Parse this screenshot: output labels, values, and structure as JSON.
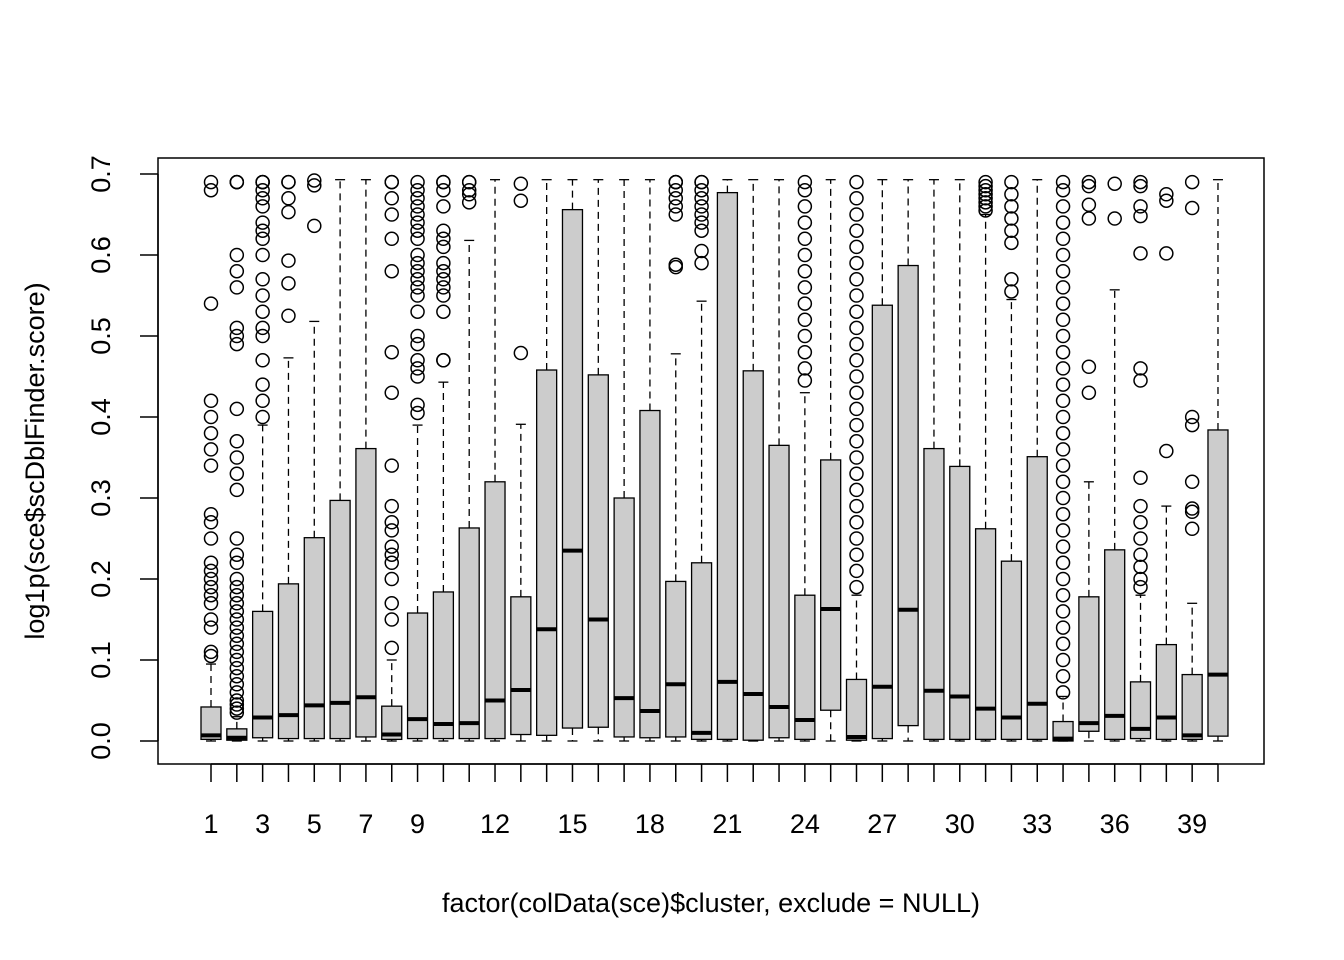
{
  "chart_data": {
    "type": "boxplot",
    "xlabel": "factor(colData(sce)$cluster, exclude = NULL)",
    "ylabel": "log1p(sce$scDblFinder.score)",
    "ylim": [
      0.0,
      0.7
    ],
    "y_ticks": [
      "0.0",
      "0.1",
      "0.2",
      "0.3",
      "0.4",
      "0.5",
      "0.6",
      "0.7"
    ],
    "categories": [
      "1",
      "2",
      "3",
      "4",
      "5",
      "6",
      "7",
      "8",
      "9",
      "10",
      "11",
      "12",
      "13",
      "14",
      "15",
      "16",
      "17",
      "18",
      "19",
      "20",
      "21",
      "22",
      "23",
      "24",
      "25",
      "26",
      "27",
      "28",
      "29",
      "30",
      "31",
      "32",
      "33",
      "34",
      "35",
      "36",
      "37",
      "38",
      "39",
      "40"
    ],
    "x_tick_labels": [
      "1",
      "3",
      "5",
      "7",
      "9",
      "12",
      "15",
      "18",
      "21",
      "24",
      "27",
      "30",
      "33",
      "36",
      "39"
    ],
    "grid": false,
    "legend": "none",
    "series": [
      {
        "q1": 0.002,
        "median": 0.007,
        "q3": 0.042,
        "lo": 0.0,
        "hi": 0.095,
        "outliers": [
          0.105,
          0.11,
          0.14,
          0.15,
          0.17,
          0.18,
          0.19,
          0.2,
          0.21,
          0.22,
          0.25,
          0.27,
          0.28,
          0.34,
          0.36,
          0.38,
          0.4,
          0.42,
          0.54,
          0.68,
          0.69
        ]
      },
      {
        "q1": 0.001,
        "median": 0.004,
        "q3": 0.015,
        "lo": 0.0,
        "hi": 0.03,
        "outliers": [
          0.035,
          0.04,
          0.045,
          0.05,
          0.06,
          0.07,
          0.08,
          0.09,
          0.1,
          0.11,
          0.12,
          0.13,
          0.14,
          0.15,
          0.16,
          0.17,
          0.18,
          0.19,
          0.2,
          0.22,
          0.23,
          0.25,
          0.31,
          0.33,
          0.35,
          0.37,
          0.41,
          0.49,
          0.5,
          0.51,
          0.56,
          0.58,
          0.6,
          0.69,
          0.69,
          0.69
        ]
      },
      {
        "q1": 0.004,
        "median": 0.029,
        "q3": 0.16,
        "lo": 0.0,
        "hi": 0.39,
        "outliers": [
          0.4,
          0.42,
          0.44,
          0.47,
          0.5,
          0.51,
          0.53,
          0.55,
          0.57,
          0.6,
          0.62,
          0.63,
          0.64,
          0.66,
          0.67,
          0.68,
          0.69,
          0.69,
          0.69
        ]
      },
      {
        "q1": 0.003,
        "median": 0.032,
        "q3": 0.194,
        "lo": 0.0,
        "hi": 0.473,
        "outliers": [
          0.525,
          0.565,
          0.593,
          0.653,
          0.67,
          0.69,
          0.69
        ]
      },
      {
        "q1": 0.003,
        "median": 0.044,
        "q3": 0.251,
        "lo": 0.0,
        "hi": 0.518,
        "outliers": [
          0.636,
          0.686,
          0.692
        ]
      },
      {
        "q1": 0.003,
        "median": 0.047,
        "q3": 0.297,
        "lo": 0.0,
        "hi": 0.693,
        "outliers": []
      },
      {
        "q1": 0.005,
        "median": 0.054,
        "q3": 0.361,
        "lo": 0.0,
        "hi": 0.693,
        "outliers": []
      },
      {
        "q1": 0.002,
        "median": 0.008,
        "q3": 0.043,
        "lo": 0.0,
        "hi": 0.1,
        "outliers": [
          0.115,
          0.15,
          0.17,
          0.2,
          0.22,
          0.23,
          0.24,
          0.26,
          0.27,
          0.29,
          0.34,
          0.43,
          0.48,
          0.58,
          0.62,
          0.65,
          0.67,
          0.69,
          0.69
        ]
      },
      {
        "q1": 0.003,
        "median": 0.027,
        "q3": 0.158,
        "lo": 0.0,
        "hi": 0.39,
        "outliers": [
          0.405,
          0.415,
          0.45,
          0.46,
          0.47,
          0.49,
          0.5,
          0.53,
          0.55,
          0.56,
          0.57,
          0.58,
          0.59,
          0.6,
          0.62,
          0.63,
          0.64,
          0.65,
          0.66,
          0.67,
          0.68,
          0.69
        ]
      },
      {
        "q1": 0.003,
        "median": 0.021,
        "q3": 0.184,
        "lo": 0.0,
        "hi": 0.443,
        "outliers": [
          0.47,
          0.47,
          0.53,
          0.55,
          0.56,
          0.57,
          0.58,
          0.59,
          0.61,
          0.62,
          0.63,
          0.66,
          0.68,
          0.69,
          0.69
        ]
      },
      {
        "q1": 0.003,
        "median": 0.022,
        "q3": 0.263,
        "lo": 0.0,
        "hi": 0.618,
        "outliers": [
          0.665,
          0.675,
          0.68,
          0.69,
          0.69
        ]
      },
      {
        "q1": 0.003,
        "median": 0.05,
        "q3": 0.32,
        "lo": 0.0,
        "hi": 0.693,
        "outliers": []
      },
      {
        "q1": 0.008,
        "median": 0.063,
        "q3": 0.178,
        "lo": 0.0,
        "hi": 0.391,
        "outliers": [
          0.479,
          0.667,
          0.688
        ]
      },
      {
        "q1": 0.007,
        "median": 0.138,
        "q3": 0.458,
        "lo": 0.0,
        "hi": 0.693,
        "outliers": []
      },
      {
        "q1": 0.016,
        "median": 0.235,
        "q3": 0.656,
        "lo": 0.0,
        "hi": 0.693,
        "outliers": []
      },
      {
        "q1": 0.017,
        "median": 0.15,
        "q3": 0.452,
        "lo": 0.0,
        "hi": 0.693,
        "outliers": []
      },
      {
        "q1": 0.005,
        "median": 0.053,
        "q3": 0.3,
        "lo": 0.0,
        "hi": 0.693,
        "outliers": []
      },
      {
        "q1": 0.004,
        "median": 0.037,
        "q3": 0.408,
        "lo": 0.0,
        "hi": 0.693,
        "outliers": []
      },
      {
        "q1": 0.005,
        "median": 0.07,
        "q3": 0.197,
        "lo": 0.0,
        "hi": 0.478,
        "outliers": [
          0.585,
          0.588,
          0.65,
          0.66,
          0.67,
          0.68,
          0.69,
          0.69,
          0.69
        ]
      },
      {
        "q1": 0.002,
        "median": 0.01,
        "q3": 0.22,
        "lo": 0.0,
        "hi": 0.543,
        "outliers": [
          0.59,
          0.605,
          0.63,
          0.64,
          0.65,
          0.66,
          0.67,
          0.68,
          0.69,
          0.69
        ]
      },
      {
        "q1": 0.002,
        "median": 0.073,
        "q3": 0.677,
        "lo": 0.0,
        "hi": 0.693,
        "outliers": []
      },
      {
        "q1": 0.001,
        "median": 0.058,
        "q3": 0.457,
        "lo": 0.0,
        "hi": 0.693,
        "outliers": []
      },
      {
        "q1": 0.004,
        "median": 0.042,
        "q3": 0.365,
        "lo": 0.0,
        "hi": 0.693,
        "outliers": []
      },
      {
        "q1": 0.002,
        "median": 0.026,
        "q3": 0.18,
        "lo": 0.0,
        "hi": 0.43,
        "outliers": [
          0.445,
          0.46,
          0.48,
          0.5,
          0.52,
          0.54,
          0.56,
          0.58,
          0.6,
          0.62,
          0.64,
          0.66,
          0.68,
          0.69
        ]
      },
      {
        "q1": 0.038,
        "median": 0.163,
        "q3": 0.347,
        "lo": 0.0,
        "hi": 0.693,
        "outliers": []
      },
      {
        "q1": 0.001,
        "median": 0.005,
        "q3": 0.076,
        "lo": 0.0,
        "hi": 0.18,
        "outliers": [
          0.19,
          0.21,
          0.23,
          0.25,
          0.27,
          0.29,
          0.31,
          0.33,
          0.35,
          0.37,
          0.39,
          0.41,
          0.43,
          0.45,
          0.47,
          0.49,
          0.51,
          0.53,
          0.55,
          0.57,
          0.59,
          0.61,
          0.63,
          0.65,
          0.67,
          0.69
        ]
      },
      {
        "q1": 0.003,
        "median": 0.067,
        "q3": 0.538,
        "lo": 0.0,
        "hi": 0.693,
        "outliers": []
      },
      {
        "q1": 0.019,
        "median": 0.162,
        "q3": 0.587,
        "lo": 0.0,
        "hi": 0.693,
        "outliers": []
      },
      {
        "q1": 0.002,
        "median": 0.062,
        "q3": 0.361,
        "lo": 0.0,
        "hi": 0.693,
        "outliers": []
      },
      {
        "q1": 0.002,
        "median": 0.055,
        "q3": 0.339,
        "lo": 0.0,
        "hi": 0.693,
        "outliers": []
      },
      {
        "q1": 0.002,
        "median": 0.04,
        "q3": 0.262,
        "lo": 0.0,
        "hi": 0.65,
        "outliers": [
          0.655,
          0.66,
          0.665,
          0.67,
          0.675,
          0.68,
          0.685,
          0.69
        ]
      },
      {
        "q1": 0.002,
        "median": 0.029,
        "q3": 0.222,
        "lo": 0.0,
        "hi": 0.545,
        "outliers": [
          0.555,
          0.57,
          0.615,
          0.63,
          0.645,
          0.66,
          0.675,
          0.69
        ]
      },
      {
        "q1": 0.002,
        "median": 0.046,
        "q3": 0.351,
        "lo": 0.0,
        "hi": 0.693,
        "outliers": []
      },
      {
        "q1": 0.0,
        "median": 0.003,
        "q3": 0.024,
        "lo": 0.0,
        "hi": 0.055,
        "outliers": [
          0.06,
          0.08,
          0.1,
          0.12,
          0.14,
          0.16,
          0.18,
          0.2,
          0.22,
          0.24,
          0.26,
          0.28,
          0.3,
          0.32,
          0.34,
          0.36,
          0.38,
          0.4,
          0.42,
          0.44,
          0.46,
          0.48,
          0.5,
          0.52,
          0.54,
          0.56,
          0.58,
          0.6,
          0.62,
          0.64,
          0.66,
          0.68,
          0.69
        ]
      },
      {
        "q1": 0.012,
        "median": 0.022,
        "q3": 0.178,
        "lo": 0.0,
        "hi": 0.32,
        "outliers": [
          0.43,
          0.462,
          0.645,
          0.662,
          0.685,
          0.69
        ]
      },
      {
        "q1": 0.002,
        "median": 0.031,
        "q3": 0.236,
        "lo": 0.0,
        "hi": 0.557,
        "outliers": [
          0.645,
          0.688
        ]
      },
      {
        "q1": 0.003,
        "median": 0.015,
        "q3": 0.073,
        "lo": 0.0,
        "hi": 0.18,
        "outliers": [
          0.19,
          0.2,
          0.215,
          0.23,
          0.25,
          0.27,
          0.29,
          0.325,
          0.445,
          0.46,
          0.602,
          0.648,
          0.66,
          0.685,
          0.69
        ]
      },
      {
        "q1": 0.002,
        "median": 0.029,
        "q3": 0.119,
        "lo": 0.0,
        "hi": 0.29,
        "outliers": [
          0.358,
          0.602,
          0.667,
          0.675
        ]
      },
      {
        "q1": 0.002,
        "median": 0.007,
        "q3": 0.082,
        "lo": 0.0,
        "hi": 0.17,
        "outliers": [
          0.262,
          0.283,
          0.287,
          0.32,
          0.39,
          0.4,
          0.658,
          0.69
        ]
      },
      {
        "q1": 0.006,
        "median": 0.082,
        "q3": 0.384,
        "lo": 0.0,
        "hi": 0.693,
        "outliers": []
      }
    ]
  }
}
